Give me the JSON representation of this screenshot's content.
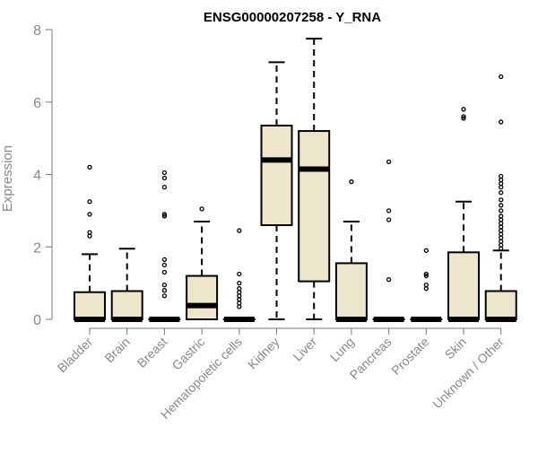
{
  "chart_data": {
    "type": "box",
    "title": "ENSG00000207258 - Y_RNA",
    "xlabel": "",
    "ylabel": "Expression",
    "ylim": [
      0,
      8
    ],
    "yticks": [
      0,
      2,
      4,
      6,
      8
    ],
    "grid": false,
    "colors": {
      "box_fill": "#ede6cc",
      "stroke": "#000000",
      "axis": "#777777",
      "tick_label": "#888888"
    },
    "categories": [
      "Bladder",
      "Brain",
      "Breast",
      "Gastric",
      "Hematopoietic cells",
      "Kidney",
      "Liver",
      "Lung",
      "Pancreas",
      "Prostate",
      "Skin",
      "Unknown / Other"
    ],
    "boxes": [
      {
        "category": "Bladder",
        "q1": 0,
        "median": 0,
        "q3": 0.75,
        "whisker_low": 0,
        "whisker_high": 1.8,
        "outliers": [
          2.3,
          2.4,
          2.9,
          3.25,
          4.2
        ]
      },
      {
        "category": "Brain",
        "q1": 0,
        "median": 0,
        "q3": 0.78,
        "whisker_low": 0,
        "whisker_high": 1.95,
        "outliers": []
      },
      {
        "category": "Breast",
        "q1": 0,
        "median": 0,
        "q3": 0,
        "whisker_low": 0,
        "whisker_high": 0,
        "outliers": [
          0.65,
          0.8,
          0.95,
          1.3,
          1.5,
          1.65,
          2.85,
          2.9,
          3.65,
          3.9,
          4.05
        ]
      },
      {
        "category": "Gastric",
        "q1": 0,
        "median": 0.38,
        "q3": 1.2,
        "whisker_low": 0,
        "whisker_high": 2.7,
        "outliers": [
          3.05
        ]
      },
      {
        "category": "Hematopoietic cells",
        "q1": 0,
        "median": 0,
        "q3": 0,
        "whisker_low": 0,
        "whisker_high": 0,
        "outliers": [
          0.35,
          0.45,
          0.55,
          0.65,
          0.75,
          0.85,
          1.0,
          1.25,
          2.45
        ]
      },
      {
        "category": "Kidney",
        "q1": 2.6,
        "median": 4.4,
        "q3": 5.35,
        "whisker_low": 0,
        "whisker_high": 7.1,
        "outliers": []
      },
      {
        "category": "Liver",
        "q1": 1.05,
        "median": 4.15,
        "q3": 5.2,
        "whisker_low": 0,
        "whisker_high": 7.75,
        "outliers": []
      },
      {
        "category": "Lung",
        "q1": 0,
        "median": 0,
        "q3": 1.55,
        "whisker_low": 0,
        "whisker_high": 2.7,
        "outliers": [
          3.8
        ]
      },
      {
        "category": "Pancreas",
        "q1": 0,
        "median": 0,
        "q3": 0,
        "whisker_low": 0,
        "whisker_high": 0,
        "outliers": [
          1.1,
          2.75,
          3.0,
          4.35
        ]
      },
      {
        "category": "Prostate",
        "q1": 0,
        "median": 0,
        "q3": 0,
        "whisker_low": 0,
        "whisker_high": 0,
        "outliers": [
          0.85,
          0.95,
          1.2,
          1.25,
          1.9
        ]
      },
      {
        "category": "Skin",
        "q1": 0,
        "median": 0,
        "q3": 1.85,
        "whisker_low": 0,
        "whisker_high": 3.25,
        "outliers": [
          5.55,
          5.6,
          5.8
        ]
      },
      {
        "category": "Unknown / Other",
        "q1": 0,
        "median": 0,
        "q3": 0.78,
        "whisker_low": 0,
        "whisker_high": 1.9,
        "outliers": [
          1.95,
          2.05,
          2.15,
          2.25,
          2.35,
          2.45,
          2.55,
          2.65,
          2.75,
          2.85,
          3.0,
          3.15,
          3.3,
          3.5,
          3.65,
          3.75,
          3.85,
          3.95,
          5.45,
          6.7
        ]
      }
    ]
  }
}
